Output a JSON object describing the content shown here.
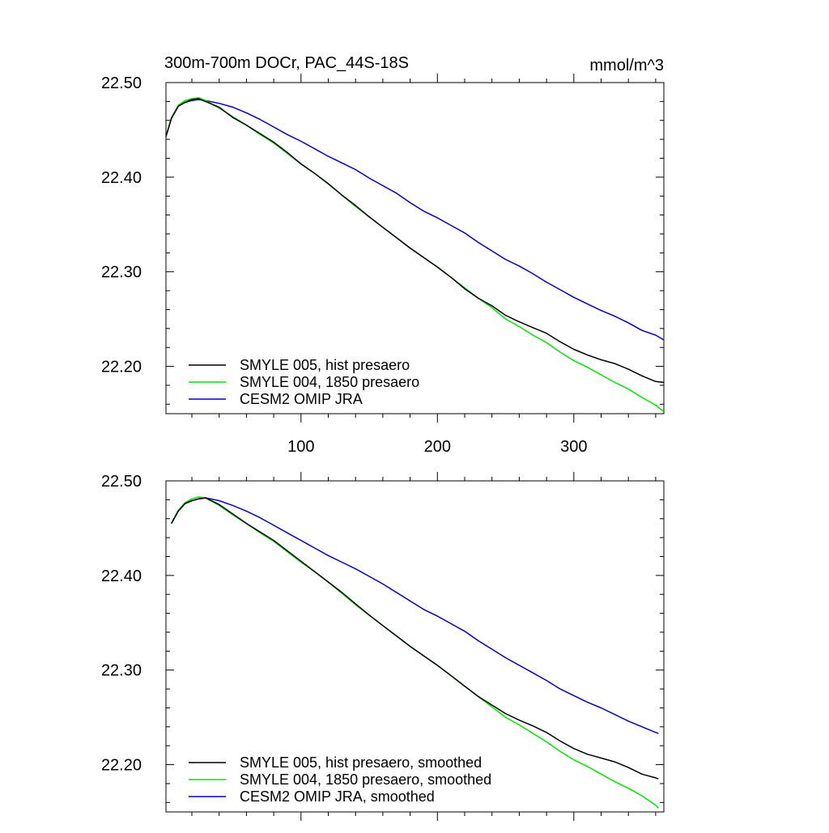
{
  "header": {
    "title": "300m-700m DOCr, PAC_44S-18S",
    "units": "mmol/m^3"
  },
  "chart_data": [
    {
      "type": "line",
      "title": "300m-700m DOCr, PAC_44S-18S",
      "units_label": "mmol/m^3",
      "xlabel": "",
      "ylabel": "",
      "xlim": [
        1,
        366
      ],
      "ylim": [
        22.15,
        22.5
      ],
      "x_ticks": [
        100,
        200,
        300
      ],
      "x_tick_labels": [
        "100",
        "200",
        "300"
      ],
      "y_ticks": [
        22.2,
        22.3,
        22.4,
        22.5
      ],
      "y_tick_labels": [
        "22.20",
        "22.30",
        "22.40",
        "22.50"
      ],
      "legend_position": "bottom-left",
      "series": [
        {
          "name": "SMYLE 005, hist presaero",
          "color": "#000000",
          "x": [
            1,
            5,
            10,
            15,
            20,
            25,
            30,
            40,
            50,
            60,
            70,
            80,
            90,
            100,
            110,
            120,
            130,
            140,
            150,
            160,
            170,
            180,
            190,
            200,
            210,
            220,
            230,
            240,
            250,
            260,
            270,
            280,
            290,
            300,
            310,
            320,
            330,
            340,
            350,
            360,
            366
          ],
          "y": [
            22.443,
            22.462,
            22.475,
            22.479,
            22.482,
            22.483,
            22.48,
            22.474,
            22.463,
            22.455,
            22.446,
            22.437,
            22.426,
            22.414,
            22.404,
            22.393,
            22.381,
            22.37,
            22.358,
            22.347,
            22.336,
            22.325,
            22.315,
            22.305,
            22.294,
            22.282,
            22.272,
            22.264,
            22.254,
            22.247,
            22.241,
            22.235,
            22.226,
            22.218,
            22.212,
            22.207,
            22.203,
            22.197,
            22.19,
            22.184,
            22.183
          ]
        },
        {
          "name": "SMYLE 004, 1850 presaero",
          "color": "#00e600",
          "x": [
            1,
            5,
            10,
            15,
            20,
            25,
            30,
            40,
            50,
            60,
            70,
            80,
            90,
            100,
            110,
            120,
            130,
            140,
            150,
            160,
            170,
            180,
            190,
            200,
            210,
            220,
            230,
            240,
            250,
            260,
            270,
            280,
            290,
            300,
            310,
            320,
            330,
            340,
            350,
            360,
            366
          ],
          "y": [
            22.443,
            22.463,
            22.476,
            22.481,
            22.483,
            22.484,
            22.481,
            22.473,
            22.464,
            22.455,
            22.445,
            22.436,
            22.425,
            22.414,
            22.404,
            22.393,
            22.381,
            22.369,
            22.358,
            22.347,
            22.336,
            22.325,
            22.315,
            22.305,
            22.294,
            22.283,
            22.272,
            22.262,
            22.25,
            22.242,
            22.233,
            22.225,
            22.215,
            22.206,
            22.199,
            22.191,
            22.183,
            22.176,
            22.167,
            22.159,
            22.152
          ]
        },
        {
          "name": "CESM2 OMIP JRA",
          "color": "#0000cc",
          "x": [
            1,
            5,
            10,
            15,
            20,
            25,
            30,
            40,
            50,
            60,
            70,
            80,
            90,
            100,
            110,
            120,
            130,
            140,
            150,
            160,
            170,
            180,
            190,
            200,
            210,
            220,
            230,
            240,
            250,
            260,
            270,
            280,
            290,
            300,
            310,
            320,
            330,
            340,
            350,
            360,
            366
          ],
          "y": [
            22.443,
            22.462,
            22.475,
            22.479,
            22.481,
            22.482,
            22.481,
            22.478,
            22.474,
            22.468,
            22.461,
            22.453,
            22.445,
            22.438,
            22.43,
            22.422,
            22.415,
            22.408,
            22.399,
            22.391,
            22.383,
            22.373,
            22.364,
            22.357,
            22.349,
            22.341,
            22.331,
            22.322,
            22.313,
            22.306,
            22.298,
            22.289,
            22.281,
            22.273,
            22.266,
            22.259,
            22.253,
            22.246,
            22.238,
            22.233,
            22.228
          ]
        }
      ]
    },
    {
      "type": "line",
      "title": "",
      "xlabel": "",
      "ylabel": "",
      "xlim": [
        1,
        366
      ],
      "ylim": [
        22.15,
        22.5
      ],
      "x_ticks": [
        100,
        200,
        300
      ],
      "x_tick_labels": [],
      "y_ticks": [
        22.2,
        22.3,
        22.4,
        22.5
      ],
      "y_tick_labels": [
        "22.20",
        "22.30",
        "22.40",
        "22.50"
      ],
      "legend_position": "bottom-left",
      "series": [
        {
          "name": "SMYLE 005, hist presaero, smoothed",
          "color": "#000000",
          "x": [
            5,
            10,
            15,
            20,
            25,
            30,
            40,
            50,
            60,
            70,
            80,
            90,
            100,
            110,
            120,
            130,
            140,
            150,
            160,
            170,
            180,
            190,
            200,
            210,
            220,
            230,
            240,
            250,
            260,
            270,
            280,
            290,
            300,
            310,
            320,
            330,
            340,
            350,
            360,
            362
          ],
          "y": [
            22.455,
            22.468,
            22.476,
            22.479,
            22.481,
            22.482,
            22.475,
            22.465,
            22.455,
            22.446,
            22.437,
            22.426,
            22.415,
            22.404,
            22.393,
            22.382,
            22.37,
            22.358,
            22.347,
            22.336,
            22.325,
            22.315,
            22.305,
            22.294,
            22.283,
            22.272,
            22.263,
            22.254,
            22.247,
            22.241,
            22.234,
            22.225,
            22.217,
            22.211,
            22.207,
            22.203,
            22.197,
            22.19,
            22.186,
            22.185
          ]
        },
        {
          "name": "SMYLE 004, 1850 presaero, smoothed",
          "color": "#00e600",
          "x": [
            5,
            10,
            15,
            20,
            25,
            30,
            40,
            50,
            60,
            70,
            80,
            90,
            100,
            110,
            120,
            130,
            140,
            150,
            160,
            170,
            180,
            190,
            200,
            210,
            220,
            230,
            240,
            250,
            260,
            270,
            280,
            290,
            300,
            310,
            320,
            330,
            340,
            350,
            360,
            362
          ],
          "y": [
            22.455,
            22.469,
            22.477,
            22.481,
            22.483,
            22.482,
            22.474,
            22.464,
            22.455,
            22.445,
            22.436,
            22.425,
            22.414,
            22.404,
            22.393,
            22.381,
            22.369,
            22.358,
            22.347,
            22.336,
            22.325,
            22.315,
            22.305,
            22.294,
            22.283,
            22.272,
            22.261,
            22.25,
            22.242,
            22.233,
            22.224,
            22.214,
            22.205,
            22.198,
            22.19,
            22.182,
            22.175,
            22.167,
            22.157,
            22.154
          ]
        },
        {
          "name": "CESM2 OMIP JRA, smoothed",
          "color": "#0000cc",
          "x": [
            5,
            10,
            15,
            20,
            25,
            30,
            40,
            50,
            60,
            70,
            80,
            90,
            100,
            110,
            120,
            130,
            140,
            150,
            160,
            170,
            180,
            190,
            200,
            210,
            220,
            230,
            240,
            250,
            260,
            270,
            280,
            290,
            300,
            310,
            320,
            330,
            340,
            350,
            360,
            362
          ],
          "y": [
            22.455,
            22.468,
            22.476,
            22.479,
            22.481,
            22.482,
            22.479,
            22.474,
            22.468,
            22.461,
            22.453,
            22.445,
            22.437,
            22.429,
            22.421,
            22.414,
            22.407,
            22.399,
            22.391,
            22.382,
            22.373,
            22.364,
            22.357,
            22.349,
            22.341,
            22.331,
            22.322,
            22.313,
            22.305,
            22.297,
            22.289,
            22.28,
            22.273,
            22.266,
            22.26,
            22.253,
            22.246,
            22.24,
            22.234,
            22.233
          ]
        }
      ]
    }
  ]
}
